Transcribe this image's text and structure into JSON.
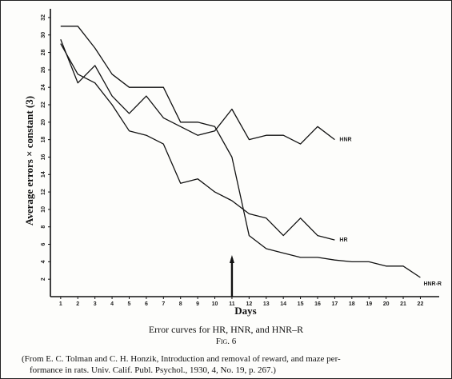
{
  "chart_data": {
    "type": "line",
    "xlabel": "Days",
    "ylabel": "Average errors × constant (3)",
    "x_ticks": [
      1,
      2,
      3,
      4,
      5,
      6,
      7,
      8,
      9,
      10,
      11,
      12,
      13,
      14,
      15,
      16,
      17,
      18,
      19,
      20,
      21,
      22
    ],
    "x_tick_labels": [
      "1",
      "2",
      "3",
      "4",
      "5",
      "6",
      "7",
      "8",
      "9",
      "10",
      "11",
      "12",
      "13",
      "14",
      "15",
      "16",
      "17",
      "18",
      "19",
      "20",
      "21",
      "22"
    ],
    "y_ticks": [
      2,
      4,
      6,
      8,
      10,
      12,
      14,
      16,
      18,
      20,
      22,
      24,
      26,
      28,
      30,
      32
    ],
    "y_tick_labels": [
      "2",
      "4",
      "6",
      "8",
      "10",
      "12",
      "14",
      "16",
      "18",
      "20",
      "22",
      "24",
      "26",
      "28",
      "30",
      "32"
    ],
    "xlim": [
      0.4,
      23.1
    ],
    "ylim": [
      0,
      33
    ],
    "grid": false,
    "series": [
      {
        "name": "HNR",
        "x": [
          1,
          2,
          3,
          4,
          5,
          6,
          7,
          8,
          9,
          10,
          11,
          12,
          13,
          14,
          15,
          16,
          17
        ],
        "y": [
          29.5,
          24.5,
          26.5,
          23,
          21,
          23,
          20.5,
          19.5,
          18.5,
          19,
          21.5,
          18,
          18.5,
          18.5,
          17.5,
          19.5,
          18
        ]
      },
      {
        "name": "HR",
        "x": [
          1,
          2,
          3,
          4,
          5,
          6,
          7,
          8,
          9,
          10,
          11,
          12,
          13,
          14,
          15,
          16,
          17
        ],
        "y": [
          29,
          25.5,
          24.5,
          22,
          19,
          18.5,
          17.5,
          13,
          13.5,
          12,
          11,
          9.5,
          9,
          7,
          9,
          7,
          6.5
        ]
      },
      {
        "name": "HNR-R",
        "x": [
          1,
          2,
          3,
          4,
          5,
          6,
          7,
          8,
          9,
          10,
          11,
          12,
          13,
          14,
          15,
          16,
          17,
          18,
          19,
          20,
          21,
          22
        ],
        "y": [
          31,
          31,
          28.5,
          25.5,
          24,
          24,
          24,
          20,
          20,
          19.5,
          16,
          7,
          5.5,
          5,
          4.5,
          4.5,
          4.2,
          4,
          4,
          3.5,
          3.5,
          2.2
        ]
      }
    ],
    "arrow_at_x": 11
  },
  "caption": {
    "title": "Error curves for HR, HNR, and HNR–R",
    "fig_label": "Fig. 6",
    "source_line1": "(From E. C. Tolman and C. H. Honzik, Introduction and removal of reward, and maze per-",
    "source_line2": "formance in rats.  Univ. Calif. Publ. Psychol., 1930, 4, No. 19, p. 267.)"
  },
  "colors": {
    "ink": "#111111",
    "paper": "#fdfdfb"
  }
}
